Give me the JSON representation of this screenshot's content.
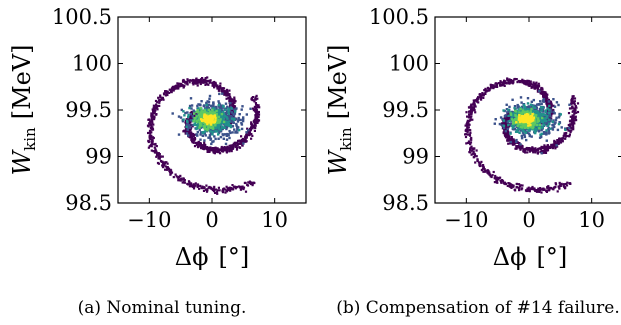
{
  "chart_data": [
    {
      "type": "scatter",
      "caption": "(a) Nominal tuning.",
      "xlabel_symbol": "Δϕ",
      "xlabel_unit": "[°]",
      "ylabel_symbol": "W",
      "ylabel_subscript": "kin",
      "ylabel_unit": "[MeV]",
      "xlim": [
        -15,
        15
      ],
      "ylim": [
        98.5,
        100.5
      ],
      "xticks": [
        -10,
        0,
        10
      ],
      "xtick_labels": [
        "−10",
        "0",
        "10"
      ],
      "yticks": [
        98.5,
        99,
        99.5,
        100,
        100.5
      ],
      "ytick_labels": [
        "98.5",
        "99",
        "99.5",
        "100",
        "100.5"
      ],
      "grid": false,
      "colormap": [
        "#440154",
        "#3b528b",
        "#21918c",
        "#5ec962",
        "#fde725"
      ],
      "core_center": [
        -0.5,
        99.4
      ]
    },
    {
      "type": "scatter",
      "caption": "(b) Compensation of #14 failure.",
      "xlabel_symbol": "Δϕ",
      "xlabel_unit": "[°]",
      "ylabel_symbol": "W",
      "ylabel_subscript": "kin",
      "ylabel_unit": "[MeV]",
      "xlim": [
        -15,
        15
      ],
      "ylim": [
        98.5,
        100.5
      ],
      "xticks": [
        -10,
        0,
        10
      ],
      "xtick_labels": [
        "−10",
        "0",
        "10"
      ],
      "yticks": [
        98.5,
        99,
        99.5,
        100,
        100.5
      ],
      "ytick_labels": [
        "98.5",
        "99",
        "99.5",
        "100",
        "100.5"
      ],
      "grid": false,
      "colormap": [
        "#440154",
        "#3b528b",
        "#21918c",
        "#5ec962",
        "#fde725"
      ],
      "core_center": [
        -0.5,
        99.4
      ]
    }
  ]
}
